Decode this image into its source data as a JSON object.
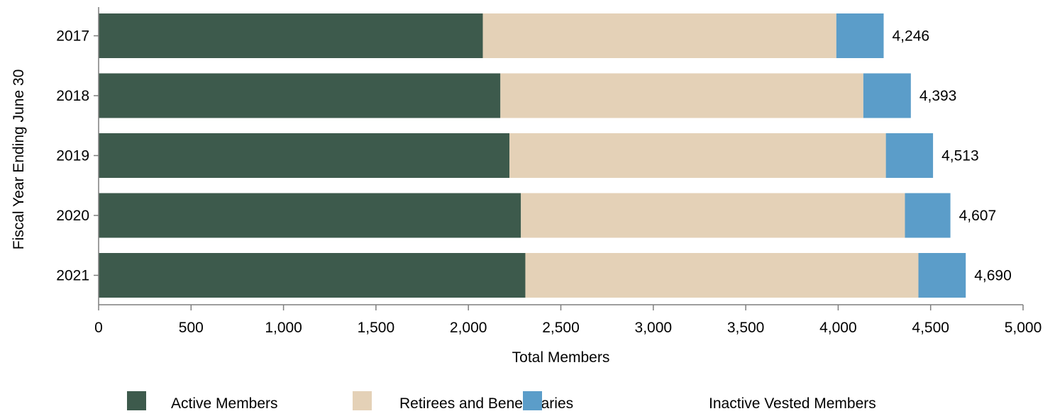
{
  "chart_data": {
    "type": "bar",
    "orientation": "horizontal",
    "stacked": true,
    "categories": [
      "2017",
      "2018",
      "2019",
      "2020",
      "2021"
    ],
    "series": [
      {
        "name": "Active Members",
        "color": "#3d5a4c",
        "values": [
          2078,
          2173,
          2222,
          2284,
          2308
        ]
      },
      {
        "name": "Retirees and Beneficiaries",
        "color": "#e4d1b7",
        "values": [
          1912,
          1963,
          2036,
          2077,
          2126
        ]
      },
      {
        "name": "Inactive Vested Members",
        "color": "#5b9dc9",
        "values": [
          256,
          257,
          255,
          246,
          256
        ]
      }
    ],
    "totals": [
      "4,246",
      "4,393",
      "4,513",
      "4,607",
      "4,690"
    ],
    "xlabel": "Total Members",
    "ylabel": "Fiscal Year Ending June 30",
    "xlim": [
      0,
      5000
    ],
    "xticks": [
      0,
      500,
      1000,
      1500,
      2000,
      2500,
      3000,
      3500,
      4000,
      4500,
      5000
    ],
    "xtick_labels": [
      "0",
      "500",
      "1,000",
      "1,500",
      "2,000",
      "2,500",
      "3,000",
      "3,500",
      "4,000",
      "4,500",
      "5,000"
    ],
    "grid": false,
    "legend_position": "bottom"
  }
}
